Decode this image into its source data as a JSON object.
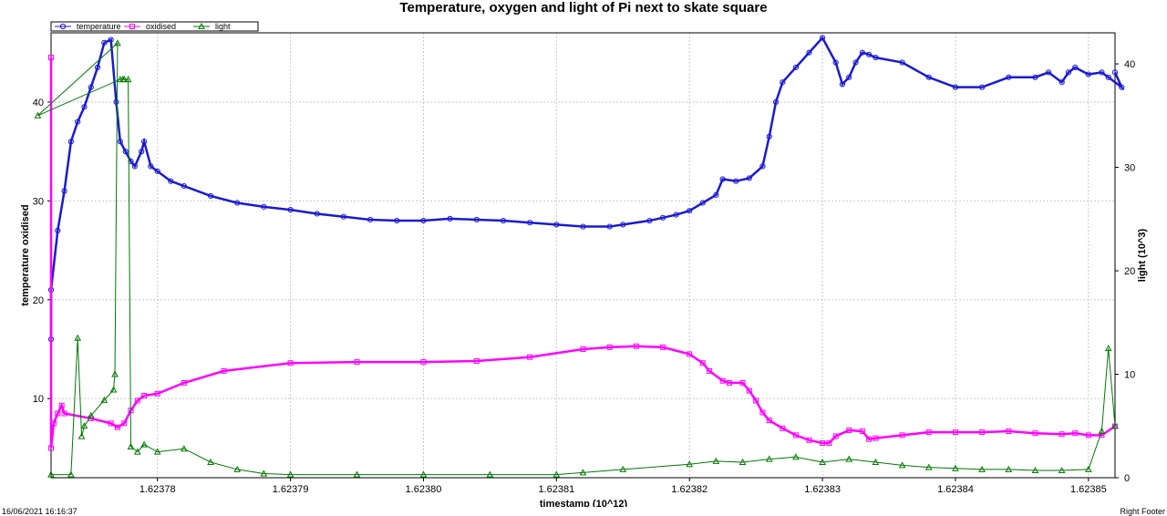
{
  "chart_data": {
    "type": "line",
    "title": "Temperature, oxygen and light of Pi next to skate square",
    "xlabel": "timestamp (10^12)",
    "ylabel_left": "temperature oxidised",
    "ylabel_right": "light (10^3)",
    "xlim": [
      1.623772,
      1.623852
    ],
    "ylim_left": [
      2,
      47
    ],
    "ylim_right": [
      0,
      43
    ],
    "x_ticks": [
      "1.62378",
      "1.62379",
      "1.62380",
      "1.62381",
      "1.62382",
      "1.62383",
      "1.62384",
      "1.62385"
    ],
    "y_ticks_left": [
      "10",
      "20",
      "30",
      "40"
    ],
    "y_ticks_right": [
      "0",
      "10",
      "20",
      "30",
      "40"
    ],
    "grid": true,
    "legend_position": "top-left",
    "series": [
      {
        "name": "temperature",
        "axis": "left",
        "color": "#1a1ad4",
        "marker": "circle",
        "x": [
          1.623772,
          1.623772,
          1.6237725,
          1.623773,
          1.6237735,
          1.623774,
          1.6237745,
          1.623775,
          1.6237755,
          1.623776,
          1.6237765,
          1.6237769,
          1.6237772,
          1.6237776,
          1.623778,
          1.6237783,
          1.6237788,
          1.623779,
          1.6237795,
          1.62378,
          1.623781,
          1.623782,
          1.623784,
          1.623786,
          1.623788,
          1.62379,
          1.623792,
          1.623794,
          1.623796,
          1.623798,
          1.6238,
          1.623802,
          1.623804,
          1.623806,
          1.623808,
          1.62381,
          1.623812,
          1.623814,
          1.623815,
          1.623817,
          1.623818,
          1.623819,
          1.62382,
          1.623821,
          1.623822,
          1.6238225,
          1.6238235,
          1.6238245,
          1.6238255,
          1.623826,
          1.6238265,
          1.623827,
          1.623828,
          1.623829,
          1.62383,
          1.623831,
          1.6238315,
          1.623832,
          1.6238325,
          1.623833,
          1.6238335,
          1.623834,
          1.623836,
          1.623838,
          1.62384,
          1.623842,
          1.623844,
          1.623846,
          1.623847,
          1.623848,
          1.6238485,
          1.623849,
          1.62385,
          1.623851,
          1.6238515,
          1.6238525,
          1.623852
        ],
        "values": [
          16,
          21,
          27,
          31,
          36,
          38,
          39.5,
          41.5,
          43.5,
          46,
          46.3,
          40,
          36,
          35,
          34,
          33.5,
          35,
          36,
          33.5,
          33,
          32,
          31.5,
          30.5,
          29.8,
          29.4,
          29.1,
          28.7,
          28.4,
          28.1,
          28.0,
          28.0,
          28.2,
          28.1,
          28.0,
          27.8,
          27.6,
          27.4,
          27.4,
          27.6,
          28.0,
          28.3,
          28.6,
          29.0,
          29.8,
          30.6,
          32.2,
          32.0,
          32.3,
          33.5,
          36.5,
          40.0,
          42.0,
          43.5,
          45.0,
          46.5,
          44.0,
          41.8,
          42.5,
          44.0,
          45.0,
          44.8,
          44.5,
          44.0,
          42.5,
          41.5,
          41.5,
          42.5,
          42.5,
          43.0,
          42.0,
          43.0,
          43.5,
          42.8,
          43.0,
          42.5,
          41.5,
          43.0
        ]
      },
      {
        "name": "oxidised",
        "axis": "left",
        "color": "#ff00ff",
        "marker": "square",
        "x": [
          1.623772,
          1.623772,
          1.6237722,
          1.6237725,
          1.6237728,
          1.623773,
          1.623775,
          1.6237765,
          1.623777,
          1.6237775,
          1.623778,
          1.6237785,
          1.623779,
          1.62378,
          1.623782,
          1.623785,
          1.62379,
          1.623795,
          1.6238,
          1.623804,
          1.623808,
          1.623812,
          1.623814,
          1.623816,
          1.623818,
          1.62382,
          1.623821,
          1.6238215,
          1.6238225,
          1.623823,
          1.623824,
          1.6238245,
          1.623825,
          1.6238255,
          1.623826,
          1.623827,
          1.623828,
          1.623829,
          1.62383,
          1.6238305,
          1.623831,
          1.623832,
          1.623833,
          1.6238335,
          1.623834,
          1.623836,
          1.623838,
          1.62384,
          1.623842,
          1.623844,
          1.623846,
          1.623848,
          1.623849,
          1.62385,
          1.623851,
          1.623852
        ],
        "values": [
          44.5,
          5.0,
          7.5,
          8.5,
          9.3,
          8.5,
          8.0,
          7.5,
          7.1,
          7.5,
          8.8,
          9.8,
          10.3,
          10.5,
          11.6,
          12.8,
          13.6,
          13.7,
          13.7,
          13.8,
          14.2,
          15.0,
          15.2,
          15.3,
          15.2,
          14.5,
          13.6,
          12.8,
          11.8,
          11.6,
          11.6,
          10.8,
          9.8,
          8.6,
          7.8,
          7.0,
          6.3,
          5.8,
          5.5,
          5.5,
          6.2,
          6.8,
          6.7,
          5.9,
          6.0,
          6.3,
          6.6,
          6.6,
          6.6,
          6.7,
          6.5,
          6.4,
          6.5,
          6.3,
          6.3,
          7.2
        ]
      },
      {
        "name": "light",
        "axis": "right",
        "color": "#007800",
        "marker": "triangle",
        "x": [
          1.623772,
          1.6237735,
          1.623774,
          1.6237743,
          1.6237745,
          1.623775,
          1.623776,
          1.6237767,
          1.6237768,
          1.623777,
          1.623771,
          1.6237772,
          1.6237774,
          1.6237775,
          1.6237778,
          1.623778,
          1.6237785,
          1.623779,
          1.62378,
          1.623782,
          1.623784,
          1.623786,
          1.623788,
          1.62379,
          1.623795,
          1.6238,
          1.623805,
          1.62381,
          1.623812,
          1.623815,
          1.62382,
          1.623822,
          1.623824,
          1.623826,
          1.623828,
          1.62383,
          1.623832,
          1.623834,
          1.623836,
          1.623838,
          1.62384,
          1.623842,
          1.623844,
          1.623846,
          1.623848,
          1.62385,
          1.623851,
          1.6238515,
          1.623852
        ],
        "values": [
          0.3,
          0.3,
          13.5,
          4.0,
          5.0,
          6.0,
          7.5,
          8.5,
          10.0,
          42.0,
          35.0,
          38.5,
          38.5,
          38.5,
          38.5,
          3.0,
          2.5,
          3.2,
          2.5,
          2.8,
          1.5,
          0.8,
          0.4,
          0.3,
          0.3,
          0.3,
          0.3,
          0.3,
          0.5,
          0.8,
          1.3,
          1.6,
          1.5,
          1.8,
          2.0,
          1.5,
          1.8,
          1.5,
          1.2,
          1.0,
          0.9,
          0.8,
          0.8,
          0.7,
          0.7,
          0.8,
          4.5,
          12.5,
          5.0
        ]
      }
    ]
  },
  "footer": {
    "left": "16/06/2021 16:16:37",
    "right": "Right Footer"
  }
}
